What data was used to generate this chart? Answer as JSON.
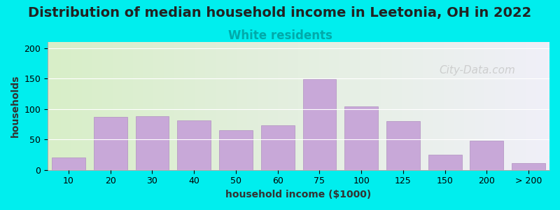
{
  "title": "Distribution of median household income in Leetonia, OH in 2022",
  "subtitle": "White residents",
  "xlabel": "household income ($1000)",
  "ylabel": "households",
  "bar_labels": [
    "10",
    "20",
    "30",
    "40",
    "50",
    "60",
    "75",
    "100",
    "125",
    "150",
    "200",
    "> 200"
  ],
  "bar_values": [
    20,
    87,
    88,
    81,
    65,
    73,
    149,
    104,
    80,
    25,
    48,
    11
  ],
  "bar_color": "#C8A8D8",
  "bar_edge_color": "#B090C0",
  "background_outer": "#00EEEE",
  "background_plot_left": "#D8EEC8",
  "background_plot_right": "#F0F0F8",
  "ylim": [
    0,
    210
  ],
  "yticks": [
    0,
    50,
    100,
    150,
    200
  ],
  "title_fontsize": 14,
  "subtitle_fontsize": 12,
  "subtitle_color": "#00AAAA",
  "axis_label_fontsize": 10,
  "watermark": "City-Data.com",
  "watermark_color": "#C0C0C0"
}
